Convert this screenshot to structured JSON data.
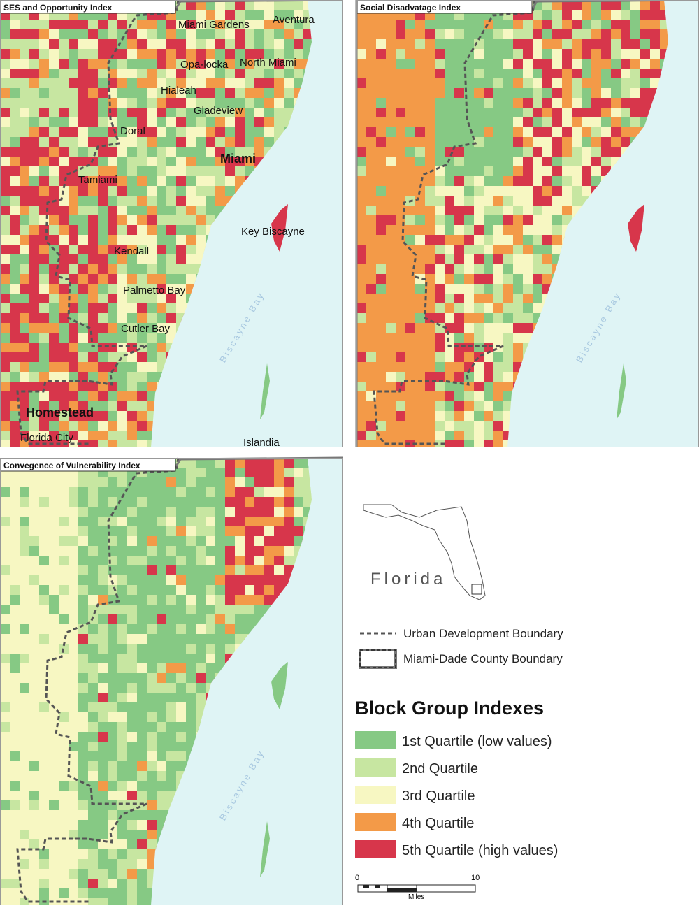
{
  "panels": [
    {
      "title": "SES and Opportunity Index",
      "water_label": "Biscayne Bay",
      "place_labels": [
        "Miami Gardens",
        "Aventura",
        "Opa-locka",
        "North Miami",
        "Hialeah",
        "Gladeview",
        "Doral",
        "Miami",
        "Tamiami",
        "Key Biscayne",
        "Kendall",
        "Palmetto Bay",
        "Cutler Bay",
        "Homestead",
        "Florida City",
        "Islandia"
      ]
    },
    {
      "title": "Social Disadvatage Index",
      "water_label": "Biscayne Bay"
    },
    {
      "title": "Convegence of Vulnerability Index",
      "water_label": "Biscayne Bay"
    }
  ],
  "inset": {
    "label": "Florida"
  },
  "boundaries": [
    "Urban Development Boundary",
    "Miami-Dade County Boundary"
  ],
  "legend": {
    "title": "Block Group Indexes",
    "quartiles": [
      {
        "label": "1st Quartile (low values)",
        "color": "#86c984"
      },
      {
        "label": "2nd Quartile",
        "color": "#c7e6a1"
      },
      {
        "label": "3rd Quartile",
        "color": "#f7f7c2"
      },
      {
        "label": "4th Quartile",
        "color": "#f39a48"
      },
      {
        "label": "5th Quartile (high values)",
        "color": "#d7364b"
      }
    ]
  },
  "scale_bar": {
    "ticks": [
      0,
      10
    ],
    "unit": "Miles"
  }
}
